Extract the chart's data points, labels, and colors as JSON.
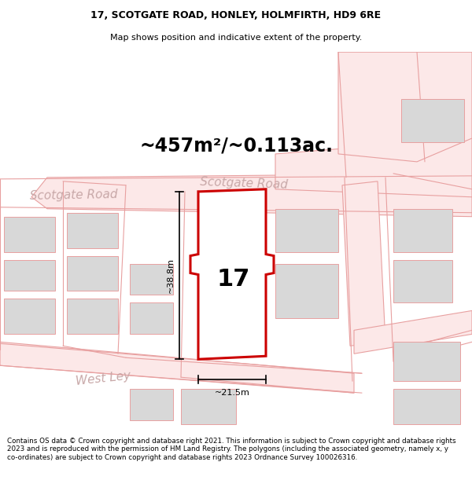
{
  "title_line1": "17, SCOTGATE ROAD, HONLEY, HOLMFIRTH, HD9 6RE",
  "title_line2": "Map shows position and indicative extent of the property.",
  "area_text": "~457m²/~0.113ac.",
  "number_label": "17",
  "dim_width": "~21.5m",
  "dim_height": "~38.8m",
  "road_label_left": "Scotgate Road",
  "road_label_top": "Scotgate Road",
  "road_label_west": "West Ley",
  "footer_text": "Contains OS data © Crown copyright and database right 2021. This information is subject to Crown copyright and database rights 2023 and is reproduced with the permission of HM Land Registry. The polygons (including the associated geometry, namely x, y co-ordinates) are subject to Crown copyright and database rights 2023 Ordnance Survey 100026316.",
  "bg_color": "#ffffff",
  "road_fill": "#fce8e8",
  "road_edge": "#e8a0a0",
  "road_line": "#e8a0a0",
  "building_fill": "#d8d8d8",
  "building_edge": "#e8a0a0",
  "highlight_fill": "#ffffff",
  "highlight_edge": "#cc0000",
  "road_label_color": "#c8a8a8",
  "dim_color": "#000000",
  "title_fontsize": 9,
  "subtitle_fontsize": 8,
  "area_fontsize": 17,
  "number_fontsize": 22,
  "road_label_fontsize": 11,
  "dim_fontsize": 8,
  "footer_fontsize": 6.3
}
